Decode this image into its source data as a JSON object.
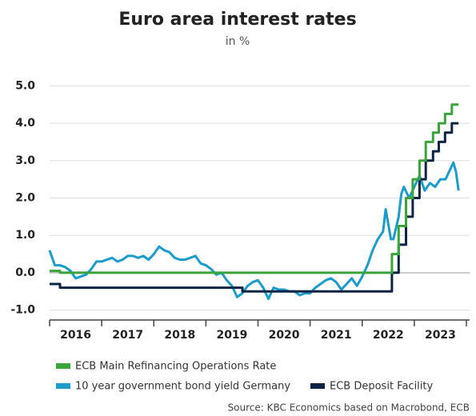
{
  "chart_data": {
    "type": "line",
    "title": "Euro area interest rates",
    "subtitle": "in %",
    "source": "Source: KBC Economics based on Macrobond, ECB",
    "categories": [
      "2016",
      "2017",
      "2018",
      "2019",
      "2020",
      "2021",
      "2022",
      "2023"
    ],
    "xlim": [
      2016,
      2024
    ],
    "xticks": [
      2016,
      2017,
      2018,
      2019,
      2020,
      2021,
      2022,
      2023,
      2024
    ],
    "ylim": [
      -1.2,
      5.2
    ],
    "yticks": [
      {
        "value": 5,
        "label": "5.0"
      },
      {
        "value": 4,
        "label": "4.0"
      },
      {
        "value": 3,
        "label": "3.0"
      },
      {
        "value": 2,
        "label": "2.0"
      },
      {
        "value": 1,
        "label": "1.0"
      },
      {
        "value": 0,
        "label": "0.0"
      },
      {
        "value": -1,
        "label": "-1.0"
      }
    ],
    "grid": true,
    "legend": "bottom",
    "series": [
      {
        "name": "ECB Main Refinancing Operations Rate",
        "color": "#3aa33a",
        "x": [
          2016.0,
          2016.2,
          2016.2,
          2022.57,
          2022.57,
          2022.7,
          2022.7,
          2022.84,
          2022.84,
          2022.97,
          2022.97,
          2023.1,
          2023.1,
          2023.22,
          2023.22,
          2023.36,
          2023.36,
          2023.47,
          2023.47,
          2023.59,
          2023.59,
          2023.72,
          2023.72,
          2023.85
        ],
        "values": [
          0.05,
          0.05,
          0,
          0,
          0.5,
          0.5,
          1.25,
          1.25,
          2.0,
          2.0,
          2.5,
          2.5,
          3.0,
          3.0,
          3.5,
          3.5,
          3.75,
          3.75,
          4.0,
          4.0,
          4.25,
          4.25,
          4.5,
          4.5
        ]
      },
      {
        "name": "10 year government bond yield Germany",
        "color": "#1b9ccb",
        "x": [
          2016.0,
          2016.1,
          2016.2,
          2016.3,
          2016.4,
          2016.5,
          2016.6,
          2016.7,
          2016.8,
          2016.9,
          2017.0,
          2017.1,
          2017.2,
          2017.3,
          2017.4,
          2017.5,
          2017.6,
          2017.7,
          2017.8,
          2017.9,
          2018.0,
          2018.1,
          2018.2,
          2018.3,
          2018.4,
          2018.5,
          2018.6,
          2018.7,
          2018.8,
          2018.9,
          2019.0,
          2019.1,
          2019.2,
          2019.3,
          2019.4,
          2019.5,
          2019.6,
          2019.7,
          2019.8,
          2019.9,
          2020.0,
          2020.1,
          2020.2,
          2020.3,
          2020.4,
          2020.5,
          2020.6,
          2020.7,
          2020.8,
          2020.9,
          2021.0,
          2021.1,
          2021.2,
          2021.3,
          2021.4,
          2021.5,
          2021.6,
          2021.7,
          2021.8,
          2021.9,
          2022.0,
          2022.1,
          2022.2,
          2022.3,
          2022.4,
          2022.45,
          2022.55,
          2022.6,
          2022.7,
          2022.75,
          2022.8,
          2022.9,
          2023.0,
          2023.1,
          2023.2,
          2023.3,
          2023.4,
          2023.5,
          2023.6,
          2023.7,
          2023.75,
          2023.8,
          2023.85
        ],
        "values": [
          0.6,
          0.2,
          0.2,
          0.15,
          0.05,
          -0.15,
          -0.1,
          -0.05,
          0.1,
          0.3,
          0.3,
          0.35,
          0.4,
          0.3,
          0.35,
          0.45,
          0.45,
          0.4,
          0.45,
          0.35,
          0.5,
          0.7,
          0.6,
          0.55,
          0.4,
          0.35,
          0.35,
          0.4,
          0.45,
          0.25,
          0.2,
          0.1,
          -0.05,
          0.0,
          -0.2,
          -0.35,
          -0.65,
          -0.55,
          -0.35,
          -0.25,
          -0.2,
          -0.4,
          -0.7,
          -0.4,
          -0.45,
          -0.45,
          -0.5,
          -0.5,
          -0.6,
          -0.55,
          -0.55,
          -0.4,
          -0.3,
          -0.2,
          -0.15,
          -0.25,
          -0.45,
          -0.3,
          -0.15,
          -0.35,
          -0.1,
          0.2,
          0.6,
          0.9,
          1.1,
          1.7,
          0.9,
          0.9,
          1.5,
          2.1,
          2.3,
          2.0,
          2.3,
          2.6,
          2.2,
          2.4,
          2.3,
          2.5,
          2.5,
          2.8,
          2.95,
          2.7,
          2.2
        ]
      },
      {
        "name": "ECB Deposit Facility",
        "color": "#0c2444",
        "x": [
          2016.0,
          2016.2,
          2016.2,
          2019.7,
          2019.7,
          2022.57,
          2022.57,
          2022.7,
          2022.7,
          2022.84,
          2022.84,
          2022.97,
          2022.97,
          2023.1,
          2023.1,
          2023.22,
          2023.22,
          2023.36,
          2023.36,
          2023.47,
          2023.47,
          2023.59,
          2023.59,
          2023.72,
          2023.72,
          2023.85
        ],
        "values": [
          -0.3,
          -0.3,
          -0.4,
          -0.4,
          -0.5,
          -0.5,
          0,
          0,
          0.75,
          0.75,
          1.5,
          1.5,
          2.0,
          2.0,
          2.5,
          2.5,
          3.0,
          3.0,
          3.25,
          3.25,
          3.5,
          3.5,
          3.75,
          3.75,
          4.0,
          4.0
        ]
      }
    ]
  }
}
